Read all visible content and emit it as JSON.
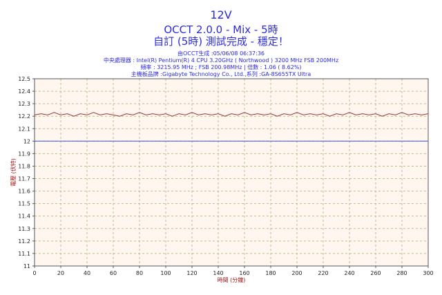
{
  "header": {
    "title": "12V",
    "subtitle": "OCCT 2.0.0 - Mix - 5時",
    "subtitle2": "自訂 (5時) 測試完成 - 穩定！",
    "info": [
      "由OCCT生成 :05/06/08 06:37:36",
      "中央處理器 : Intel(R) Pentium(R) 4 CPU 3.20GHz ( Northwood ) 3200 MHz FSB 200MHz",
      "頻率 : 3215.95 MHz ; FSB 200.98MHz | 倍數 : 1.06 ( 8.62%)",
      "主機板品牌 :Gigabyte Technology Co., Ltd.,系列 :GA-8S655TX Ultra"
    ]
  },
  "colors": {
    "text": "#2a2adf",
    "axis_label": "#aa1111",
    "series": "#993333",
    "reference": "#3355ee",
    "grid": "#bbbb88",
    "plot_bg": "#fff7ef"
  },
  "chart_data": {
    "type": "line",
    "xlabel": "時間 (分鐘)",
    "ylabel": "電壓 (伏特)",
    "xlim": [
      0,
      300
    ],
    "ylim": [
      11.0,
      12.5
    ],
    "xticks": [
      0,
      20,
      40,
      60,
      80,
      100,
      120,
      140,
      160,
      180,
      200,
      220,
      240,
      260,
      280,
      300
    ],
    "yticks": [
      11,
      11.1,
      11.2,
      11.3,
      11.4,
      11.5,
      11.6,
      11.7,
      11.8,
      11.9,
      12,
      12.1,
      12.2,
      12.3,
      12.4,
      12.5
    ],
    "grid": true,
    "series": [
      {
        "name": "",
        "x": [
          0,
          5,
          10,
          15,
          20,
          25,
          30,
          35,
          40,
          45,
          50,
          55,
          60,
          65,
          70,
          75,
          80,
          85,
          90,
          95,
          100,
          105,
          110,
          115,
          120,
          125,
          130,
          135,
          140,
          145,
          150,
          155,
          160,
          165,
          170,
          175,
          180,
          185,
          190,
          195,
          200,
          205,
          210,
          215,
          220,
          225,
          230,
          235,
          240,
          245,
          250,
          255,
          260,
          265,
          270,
          275,
          280,
          285,
          290,
          295,
          300
        ],
        "values": [
          12.21,
          12.22,
          12.21,
          12.23,
          12.21,
          12.22,
          12.2,
          12.22,
          12.21,
          12.23,
          12.21,
          12.22,
          12.21,
          12.2,
          12.22,
          12.21,
          12.23,
          12.21,
          12.22,
          12.21,
          12.22,
          12.2,
          12.22,
          12.21,
          12.23,
          12.21,
          12.22,
          12.21,
          12.22,
          12.2,
          12.22,
          12.21,
          12.23,
          12.21,
          12.22,
          12.21,
          12.22,
          12.2,
          12.22,
          12.21,
          12.23,
          12.21,
          12.22,
          12.21,
          12.22,
          12.2,
          12.22,
          12.21,
          12.23,
          12.21,
          12.22,
          12.21,
          12.22,
          12.2,
          12.22,
          12.21,
          12.23,
          12.21,
          12.22,
          12.21,
          12.22
        ]
      },
      {
        "name": "",
        "x": [
          0,
          300
        ],
        "values": [
          12.0,
          12.0
        ]
      }
    ]
  }
}
